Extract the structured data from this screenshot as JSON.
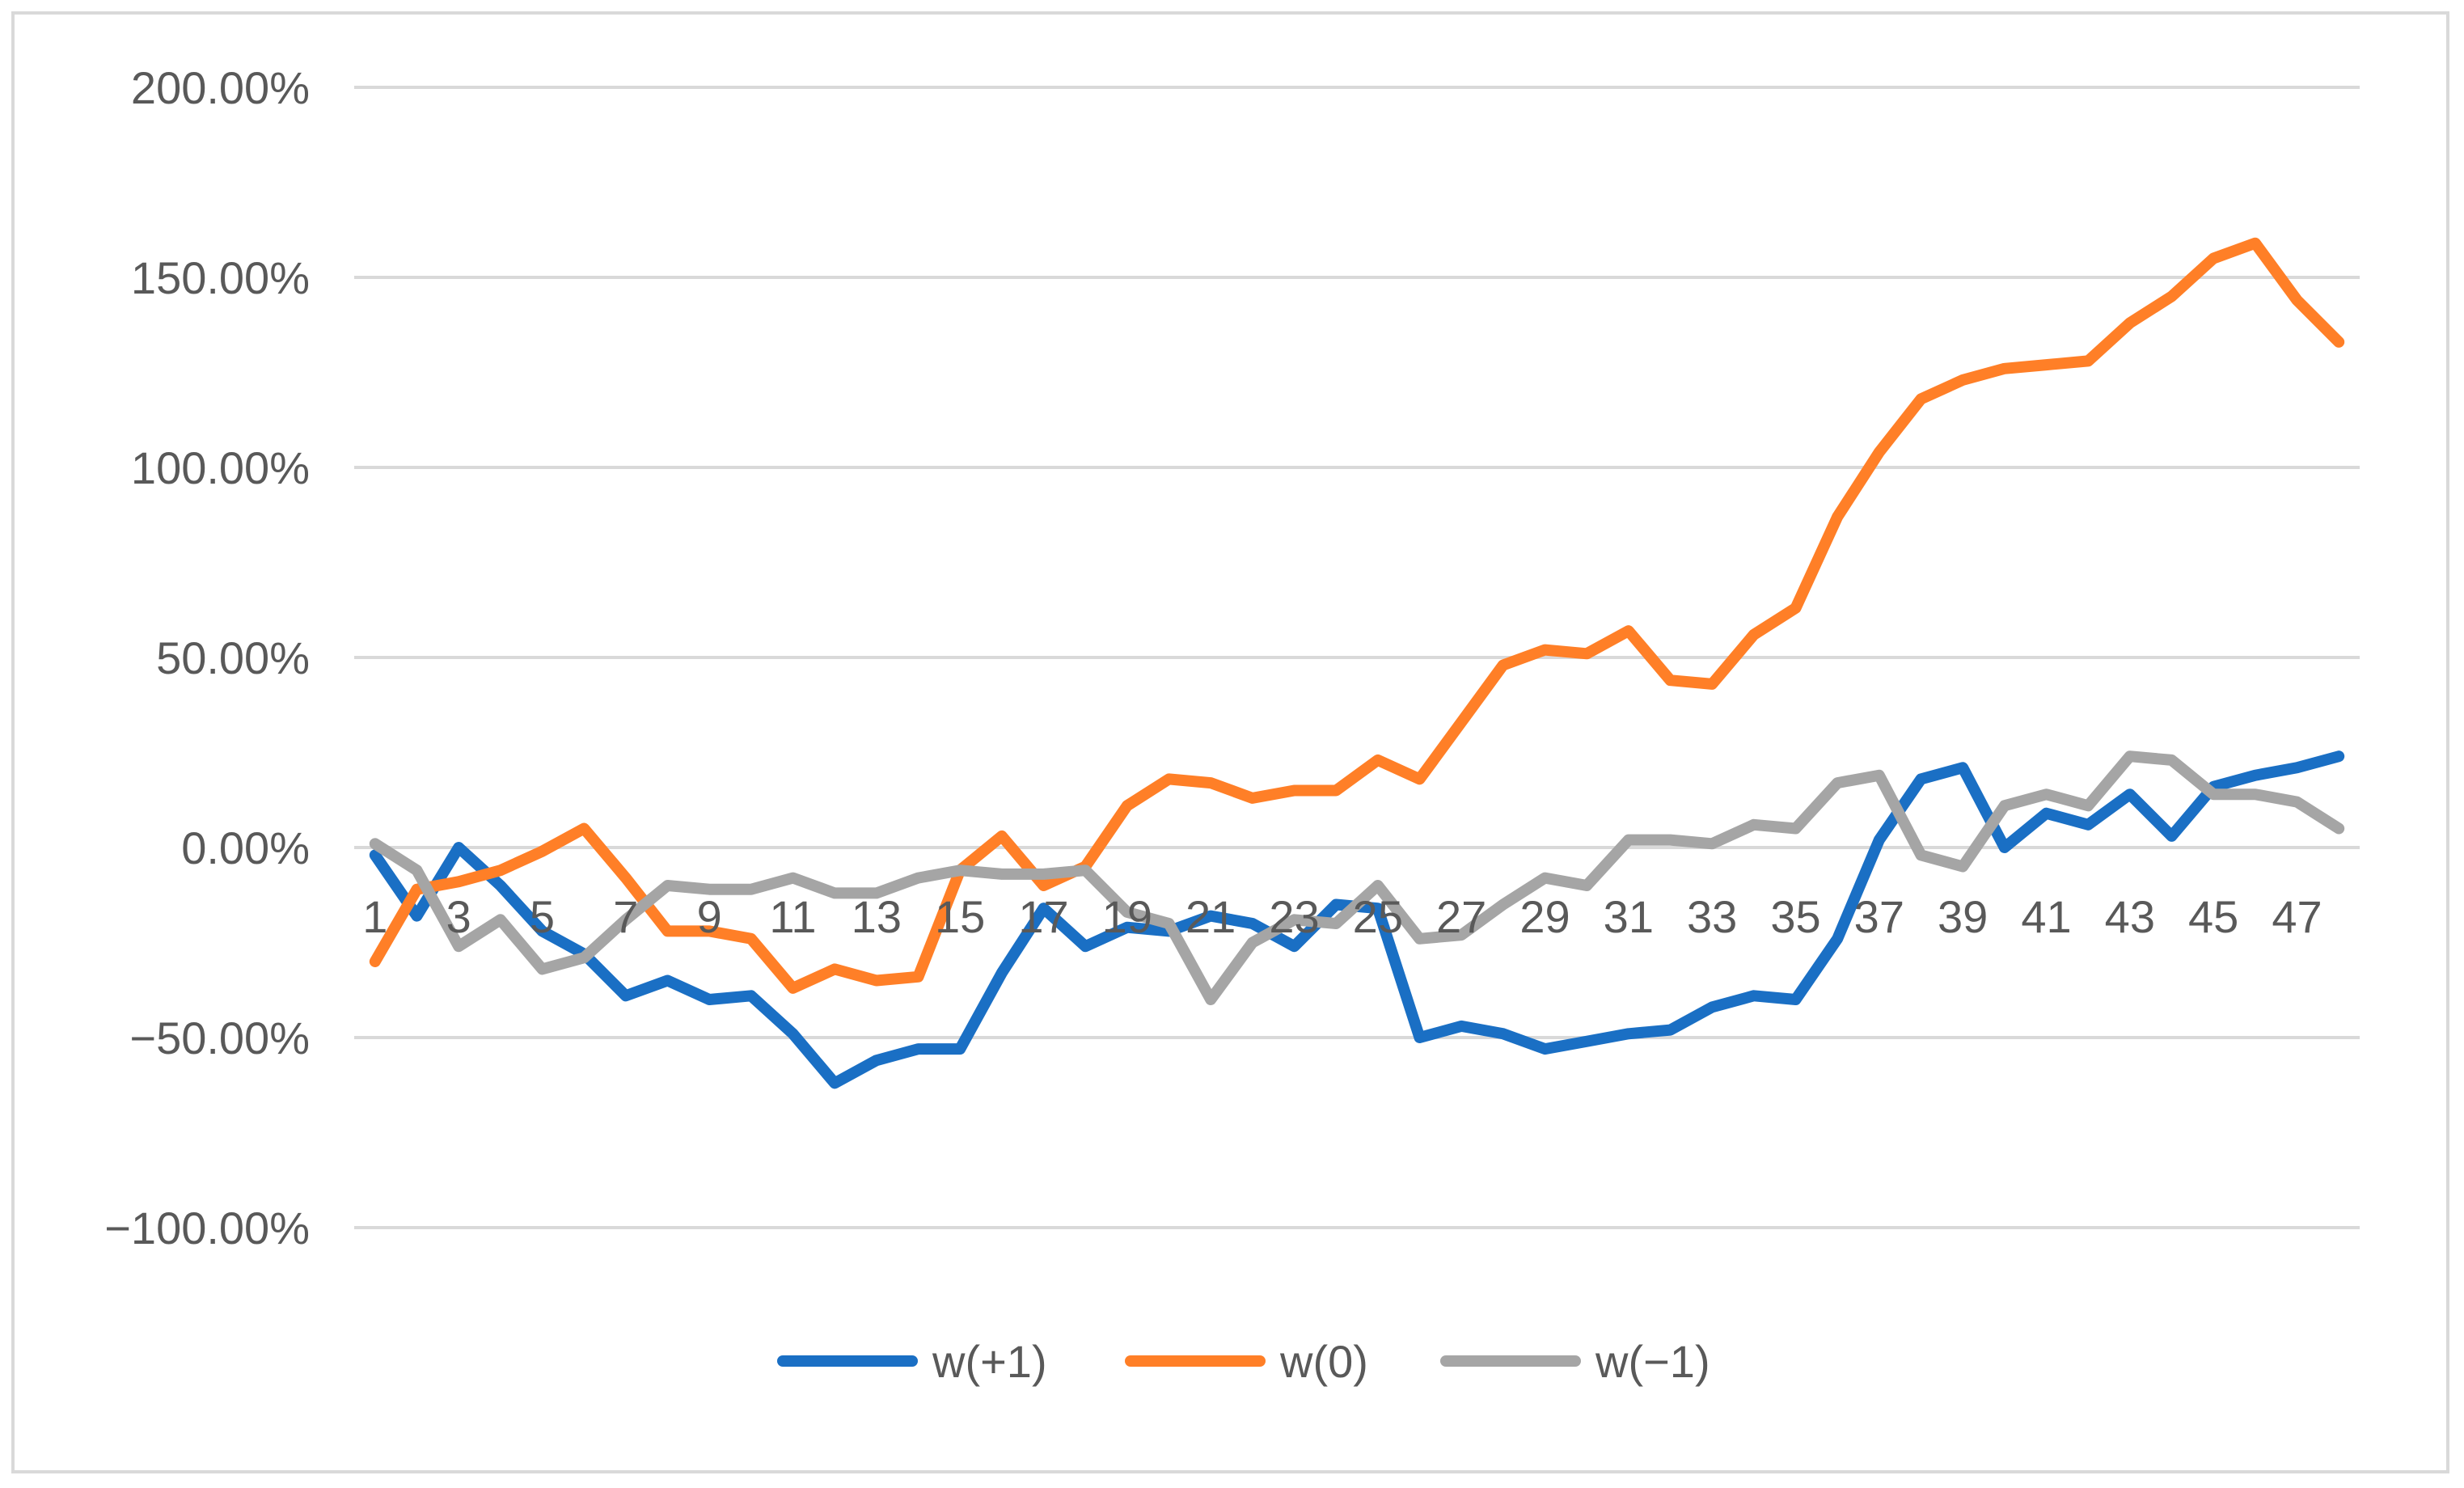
{
  "chart_data": {
    "type": "line",
    "title": "",
    "xlabel": "",
    "ylabel": "",
    "x": [
      1,
      2,
      3,
      4,
      5,
      6,
      7,
      8,
      9,
      10,
      11,
      12,
      13,
      14,
      15,
      16,
      17,
      18,
      19,
      20,
      21,
      22,
      23,
      24,
      25,
      26,
      27,
      28,
      29,
      30,
      31,
      32,
      33,
      34,
      35,
      36,
      37,
      38,
      39,
      40,
      41,
      42,
      43,
      44,
      45,
      46,
      47,
      48
    ],
    "x_tick_labels": [
      "1",
      "3",
      "5",
      "7",
      "9",
      "11",
      "13",
      "15",
      "17",
      "19",
      "21",
      "23",
      "25",
      "27",
      "29",
      "31",
      "33",
      "35",
      "37",
      "39",
      "41",
      "43",
      "45",
      "47"
    ],
    "ylim": [
      -100,
      200
    ],
    "y_tick_values": [
      200,
      150,
      100,
      50,
      0,
      -50,
      -100
    ],
    "y_tick_labels": [
      "200.00%",
      "150.00%",
      "100.00%",
      "50.00%",
      "0.00%",
      "−50.00%",
      "−100.00%"
    ],
    "y_unit": "%",
    "grid": true,
    "legend_position": "bottom",
    "series": [
      {
        "name": "w(+1)",
        "color": "#1a6fc4",
        "values": [
          -2,
          -18,
          0,
          -10,
          -22,
          -28,
          -39,
          -35,
          -40,
          -39,
          -49,
          -62,
          -56,
          -53,
          -53,
          -33,
          -16,
          -26,
          -21,
          -22,
          -18,
          -20,
          -26,
          -15,
          -16,
          -50,
          -47,
          -49,
          -53,
          -51,
          -49,
          -48,
          -42,
          -39,
          -40,
          -24,
          2,
          18,
          21,
          0,
          9,
          6,
          14,
          3,
          16,
          19,
          21,
          24
        ]
      },
      {
        "name": "w(0)",
        "color": "#ff7f27",
        "values": [
          -30,
          -11,
          -9,
          -6,
          -1,
          5,
          -8,
          -22,
          -22,
          -24,
          -37,
          -32,
          -35,
          -34,
          -6,
          3,
          -10,
          -5,
          11,
          18,
          17,
          13,
          15,
          15,
          23,
          18,
          33,
          48,
          52,
          51,
          57,
          44,
          43,
          56,
          63,
          87,
          104,
          118,
          123,
          126,
          127,
          128,
          138,
          145,
          155,
          159,
          144,
          133
        ]
      },
      {
        "name": "w(−1)",
        "color": "#a5a5a5",
        "values": [
          1,
          -6,
          -26,
          -19,
          -32,
          -29,
          -19,
          -10,
          -11,
          -11,
          -8,
          -12,
          -12,
          -8,
          -6,
          -7,
          -7,
          -6,
          -17,
          -20,
          -40,
          -25,
          -19,
          -20,
          -10,
          -24,
          -23,
          -15,
          -8,
          -10,
          2,
          2,
          1,
          6,
          5,
          17,
          19,
          -2,
          -5,
          11,
          14,
          11,
          24,
          23,
          14,
          14,
          12,
          5
        ]
      }
    ]
  }
}
